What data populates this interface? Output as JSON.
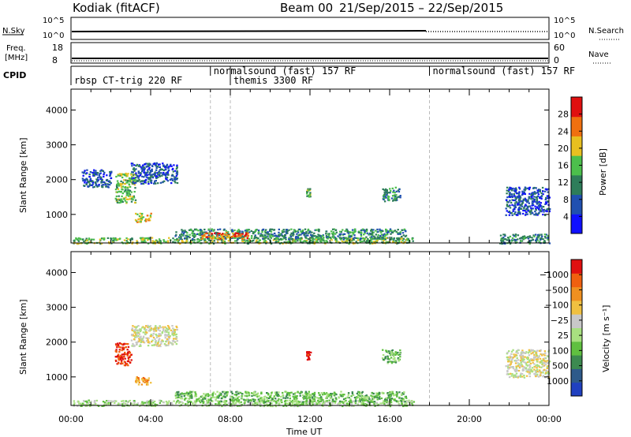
{
  "header": {
    "radar": "Kodiak (fitACF)",
    "beam": "Beam 00",
    "dates": "21/Sep/2015 – 22/Sep/2015"
  },
  "top_panels": {
    "nsky_label": "N.Sky",
    "nsky_ticks": [
      "10^5",
      "10^0"
    ],
    "nsearch_label": "N.Search",
    "freq_label_1": "Freq.",
    "freq_label_2": "[MHz]",
    "freq_ticks": [
      "18",
      "8"
    ],
    "nave_label": "Nave",
    "nave_ticks": [
      "60",
      "0"
    ],
    "cpid_label": "CPID"
  },
  "cpid_segments": [
    {
      "label": "rbsp CT-trig 220 RF",
      "start": 0,
      "row": 1
    },
    {
      "label": "normalsound (fast) 157 RF",
      "start": 7,
      "row": 0
    },
    {
      "label": "themis 3300 RF",
      "start": 8,
      "row": 1
    },
    {
      "label": "normalsound (fast) 157 RF",
      "start": 18,
      "row": 0
    }
  ],
  "chart_data": [
    {
      "type": "heatmap",
      "title": "Power",
      "xlabel": "Time UT",
      "ylabel": "Slant Range [km]",
      "xlim": [
        0,
        24
      ],
      "ylim": [
        180,
        4600
      ],
      "x_ticks": [
        "00:00",
        "04:00",
        "08:00",
        "12:00",
        "16:00",
        "20:00",
        "00:00"
      ],
      "y_ticks": [
        1000,
        2000,
        3000,
        4000
      ],
      "colorbar": {
        "label": "Power [dB]",
        "ticks": [
          4,
          8,
          12,
          16,
          20,
          24,
          28
        ],
        "colors": [
          "#1010ff",
          "#2050b0",
          "#2e7d5a",
          "#4cbf4c",
          "#e8c020",
          "#f07010",
          "#e01010"
        ]
      },
      "regions": [
        {
          "t0": 0.1,
          "t1": 17.2,
          "r0": 180,
          "r1": 350,
          "level": 3
        },
        {
          "t0": 5.2,
          "t1": 16.8,
          "r0": 300,
          "r1": 600,
          "level": 2
        },
        {
          "t0": 6.5,
          "t1": 9.0,
          "r0": 320,
          "r1": 500,
          "level": 5
        },
        {
          "t0": 3.2,
          "t1": 4.0,
          "r0": 800,
          "r1": 1050,
          "level": 4
        },
        {
          "t0": 2.2,
          "t1": 3.2,
          "r0": 1350,
          "r1": 2200,
          "level": 3
        },
        {
          "t0": 3.0,
          "t1": 5.3,
          "r0": 1900,
          "r1": 2500,
          "level": 1
        },
        {
          "t0": 0.5,
          "t1": 2.0,
          "r0": 1800,
          "r1": 2300,
          "level": 1
        },
        {
          "t0": 11.8,
          "t1": 12.0,
          "r0": 1500,
          "r1": 1800,
          "level": 3
        },
        {
          "t0": 15.6,
          "t1": 16.5,
          "r0": 1400,
          "r1": 1800,
          "level": 2
        },
        {
          "t0": 21.8,
          "t1": 24.0,
          "r0": 1000,
          "r1": 1800,
          "level": 1
        },
        {
          "t0": 21.5,
          "t1": 24.0,
          "r0": 180,
          "r1": 450,
          "level": 2
        }
      ]
    },
    {
      "type": "heatmap",
      "title": "Velocity",
      "xlabel": "Time UT",
      "ylabel": "Slant Range [km]",
      "xlim": [
        0,
        24
      ],
      "ylim": [
        180,
        4600
      ],
      "x_ticks": [
        "00:00",
        "04:00",
        "08:00",
        "12:00",
        "16:00",
        "20:00",
        "00:00"
      ],
      "y_ticks": [
        1000,
        2000,
        3000,
        4000
      ],
      "colorbar": {
        "label": "Velocity [m s⁻¹]",
        "ticks": [
          "1000",
          "500",
          "100",
          "25",
          "−25",
          "−100",
          "−500",
          "−1000"
        ],
        "colors": [
          "#2040c0",
          "#2e5a8a",
          "#3c8a50",
          "#60c040",
          "#a8e080",
          "#c8c8c8",
          "#f0c040",
          "#f09020",
          "#f06010",
          "#e01010"
        ]
      },
      "regions": [
        {
          "t0": 0.1,
          "t1": 17.2,
          "r0": 180,
          "r1": 350,
          "level": 4
        },
        {
          "t0": 5.2,
          "t1": 16.8,
          "r0": 300,
          "r1": 600,
          "level": 3
        },
        {
          "t0": 3.2,
          "t1": 4.0,
          "r0": 800,
          "r1": 1050,
          "level": 7
        },
        {
          "t0": 2.2,
          "t1": 3.0,
          "r0": 1350,
          "r1": 2000,
          "level": 9
        },
        {
          "t0": 3.0,
          "t1": 5.3,
          "r0": 1900,
          "r1": 2500,
          "level": 5
        },
        {
          "t0": 11.8,
          "t1": 12.0,
          "r0": 1500,
          "r1": 1800,
          "level": 9
        },
        {
          "t0": 15.6,
          "t1": 16.5,
          "r0": 1400,
          "r1": 1800,
          "level": 3
        },
        {
          "t0": 21.8,
          "t1": 24.0,
          "r0": 1000,
          "r1": 1800,
          "level": 5
        }
      ]
    }
  ],
  "vertical_markers": [
    7,
    8,
    18
  ]
}
